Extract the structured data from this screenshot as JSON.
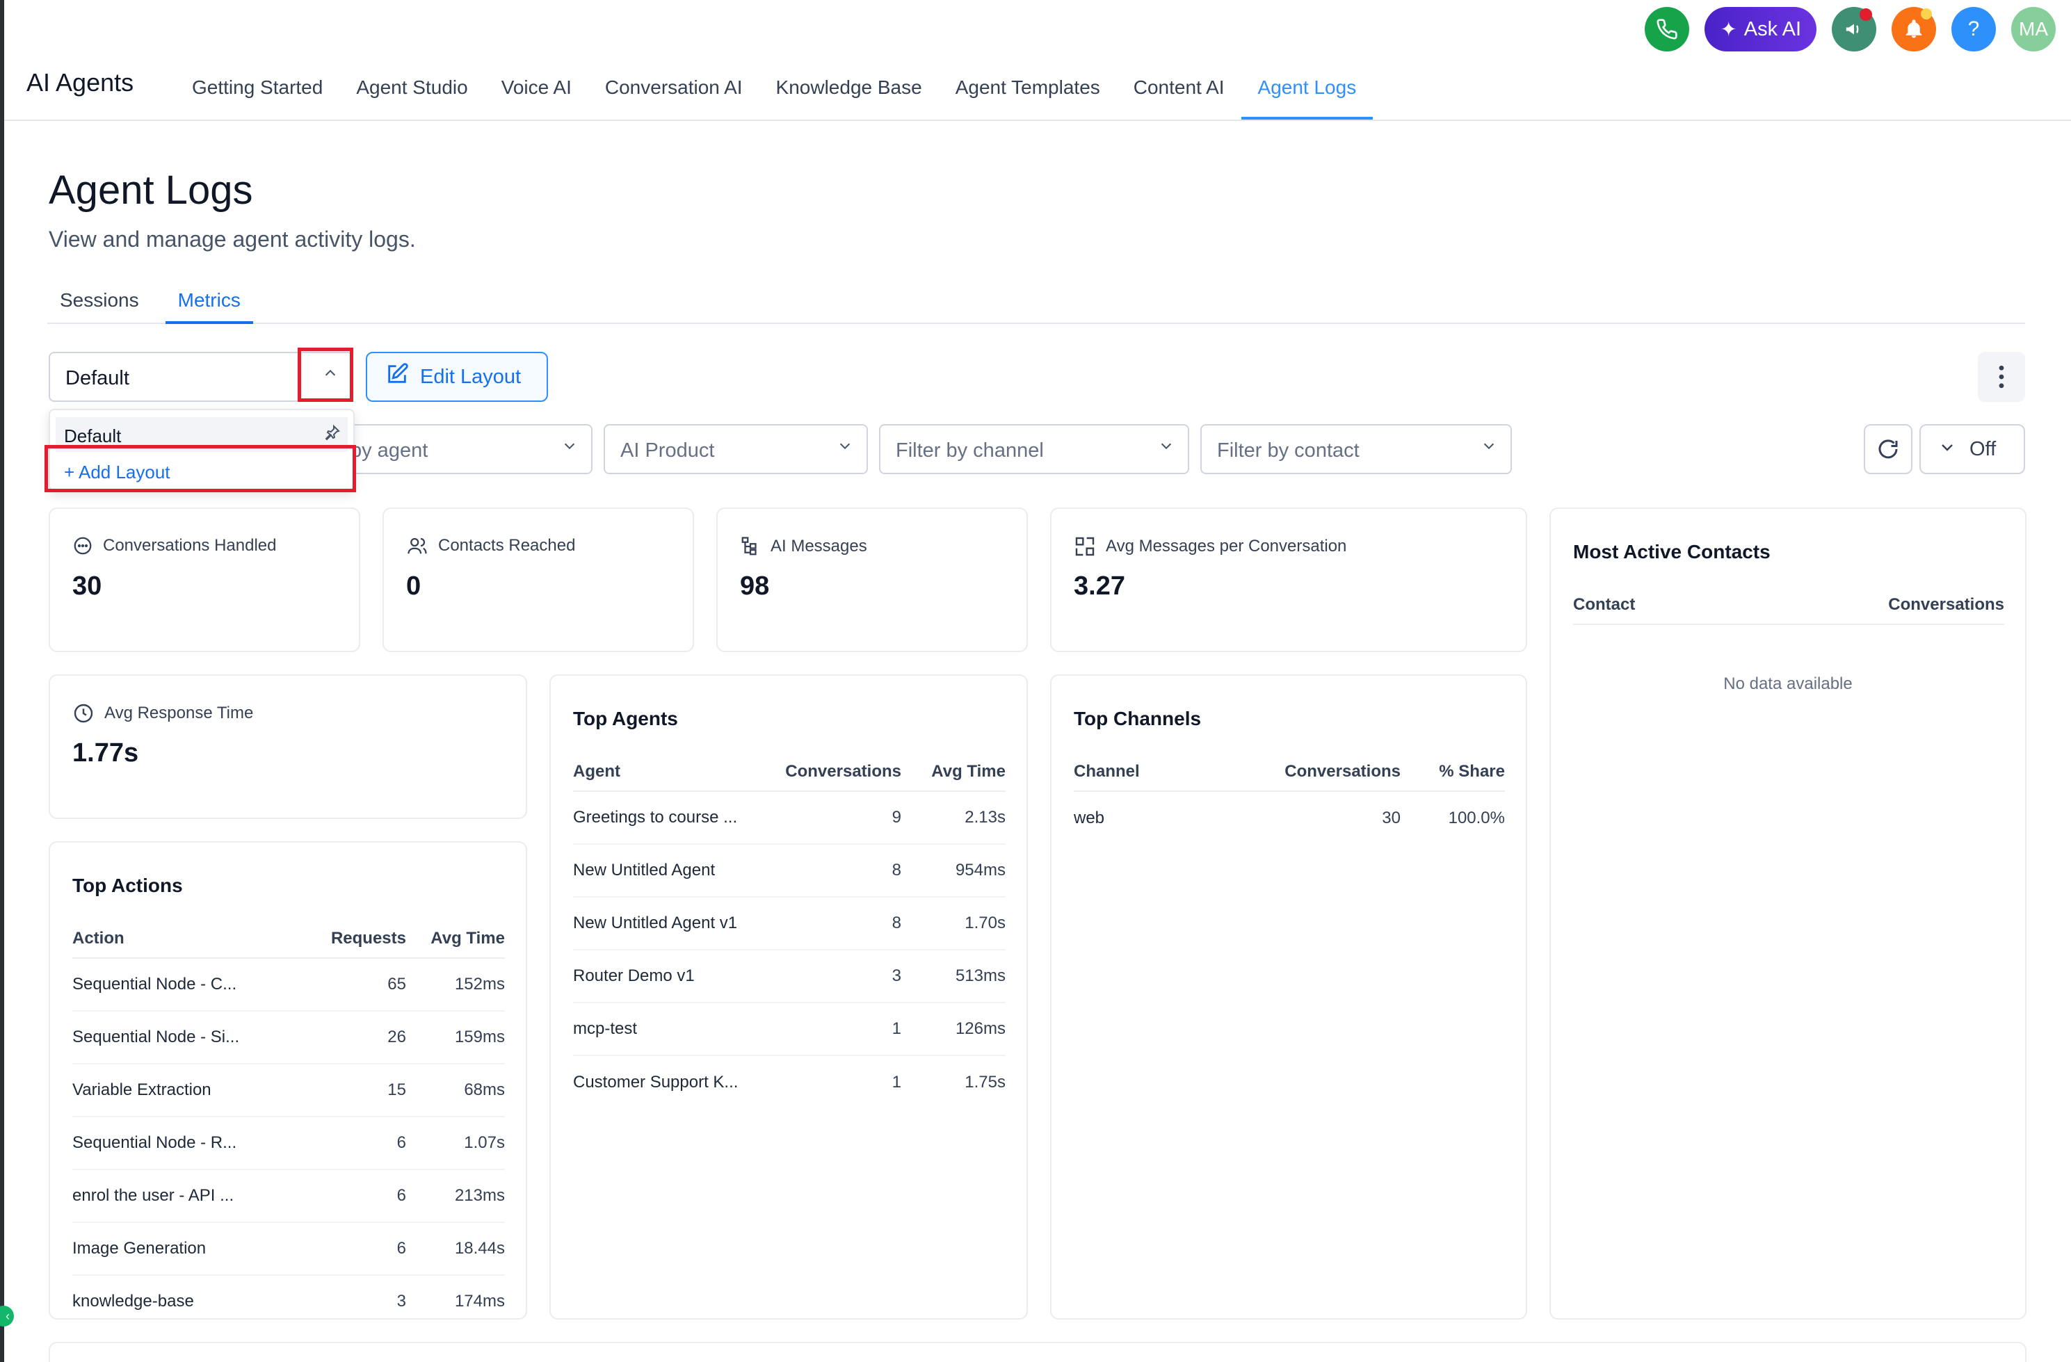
{
  "app": {
    "brand": "AI Agents"
  },
  "nav": {
    "tabs": [
      {
        "label": "Getting Started"
      },
      {
        "label": "Agent Studio"
      },
      {
        "label": "Voice AI"
      },
      {
        "label": "Conversation AI"
      },
      {
        "label": "Knowledge Base"
      },
      {
        "label": "Agent Templates"
      },
      {
        "label": "Content AI"
      },
      {
        "label": "Agent Logs"
      }
    ],
    "active": "Agent Logs"
  },
  "topbar": {
    "ask_ai": "Ask AI",
    "help": "?",
    "avatar_initials": "MA"
  },
  "page": {
    "title": "Agent Logs",
    "subtitle": "View and manage agent activity logs."
  },
  "subtabs": [
    {
      "label": "Sessions"
    },
    {
      "label": "Metrics"
    }
  ],
  "layout": {
    "selected": "Default",
    "edit_label": "Edit Layout",
    "menu": {
      "default_item": "Default",
      "add_item": "+ Add Layout"
    }
  },
  "filters": {
    "agent_partial": "by agent",
    "product": "AI Product",
    "channel": "Filter by channel",
    "contact": "Filter by contact",
    "auto_refresh": "Off"
  },
  "stats": {
    "conversations_handled": {
      "label": "Conversations Handled",
      "value": "30"
    },
    "contacts_reached": {
      "label": "Contacts Reached",
      "value": "0"
    },
    "ai_messages": {
      "label": "AI Messages",
      "value": "98"
    },
    "avg_messages": {
      "label": "Avg Messages per Conversation",
      "value": "3.27"
    },
    "avg_response": {
      "label": "Avg Response Time",
      "value": "1.77s"
    }
  },
  "most_active_contacts": {
    "title": "Most Active Contacts",
    "columns": [
      "Contact",
      "Conversations"
    ],
    "empty": "No data available"
  },
  "top_agents": {
    "title": "Top Agents",
    "columns": [
      "Agent",
      "Conversations",
      "Avg Time"
    ],
    "rows": [
      [
        "Greetings to course ...",
        "9",
        "2.13s"
      ],
      [
        "New Untitled Agent",
        "8",
        "954ms"
      ],
      [
        "New Untitled Agent v1",
        "8",
        "1.70s"
      ],
      [
        "Router Demo v1",
        "3",
        "513ms"
      ],
      [
        "mcp-test",
        "1",
        "126ms"
      ],
      [
        "Customer Support K...",
        "1",
        "1.75s"
      ]
    ]
  },
  "top_channels": {
    "title": "Top Channels",
    "columns": [
      "Channel",
      "Conversations",
      "% Share"
    ],
    "rows": [
      [
        "web",
        "30",
        "100.0%"
      ]
    ]
  },
  "top_actions": {
    "title": "Top Actions",
    "columns": [
      "Action",
      "Requests",
      "Avg Time"
    ],
    "rows": [
      [
        "Sequential Node - C...",
        "65",
        "152ms"
      ],
      [
        "Sequential Node - Si...",
        "26",
        "159ms"
      ],
      [
        "Variable Extraction",
        "15",
        "68ms"
      ],
      [
        "Sequential Node - R...",
        "6",
        "1.07s"
      ],
      [
        "enrol the user - API ...",
        "6",
        "213ms"
      ],
      [
        "Image Generation",
        "6",
        "18.44s"
      ],
      [
        "knowledge-base",
        "3",
        "174ms"
      ]
    ]
  },
  "colors": {
    "accent": "#1570ef",
    "highlight": "#e11d2e",
    "ask_ai": "#5b2bd6"
  }
}
